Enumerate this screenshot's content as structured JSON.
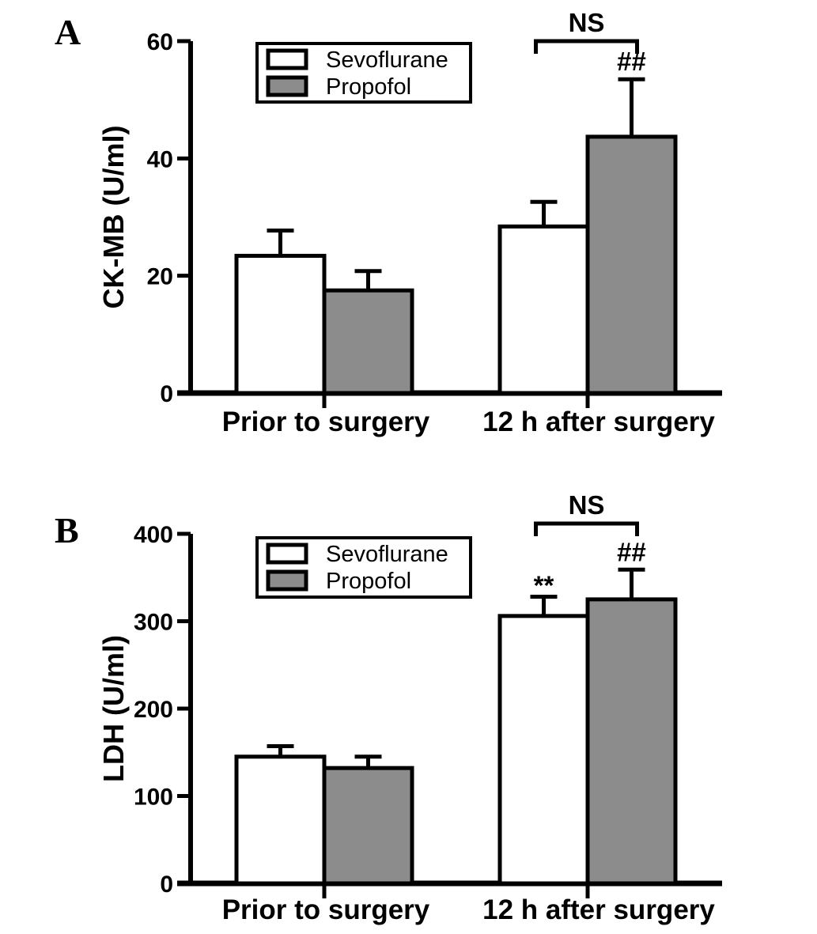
{
  "figure_background": "#ffffff",
  "stroke_color": "#000000",
  "chart_data": [
    {
      "panel": "A",
      "type": "bar",
      "title": "",
      "xlabel": "",
      "ylabel": "CK-MB (U/ml)",
      "ylim": [
        0,
        60
      ],
      "yticks": [
        0,
        20,
        40,
        60
      ],
      "categories": [
        "Prior to surgery",
        "12 h after surgery"
      ],
      "series": [
        {
          "name": "Sevoflurane",
          "fill": "#ffffff",
          "values": [
            23.4,
            28.4
          ],
          "errors": [
            4.3,
            4.2
          ]
        },
        {
          "name": "Propofol",
          "fill": "#8c8c8c",
          "values": [
            17.5,
            43.7
          ],
          "errors": [
            3.3,
            9.8
          ]
        }
      ],
      "legend": {
        "position": "top-left-inside",
        "entries": [
          "Sevoflurane",
          "Propofol"
        ]
      },
      "annotations": [
        {
          "type": "bracket",
          "text": "NS",
          "category_index": 1
        },
        {
          "type": "marker",
          "text": "##",
          "series_index": 1,
          "category_index": 1
        }
      ],
      "grid": false,
      "error_bars": "upper-only"
    },
    {
      "panel": "B",
      "type": "bar",
      "title": "",
      "xlabel": "",
      "ylabel": "LDH (U/ml)",
      "ylim": [
        0,
        400
      ],
      "yticks": [
        0,
        100,
        200,
        300,
        400
      ],
      "categories": [
        "Prior to surgery",
        "12 h after surgery"
      ],
      "series": [
        {
          "name": "Sevoflurane",
          "fill": "#ffffff",
          "values": [
            145,
            306
          ],
          "errors": [
            12,
            22
          ]
        },
        {
          "name": "Propofol",
          "fill": "#8c8c8c",
          "values": [
            132,
            325
          ],
          "errors": [
            13,
            34
          ]
        }
      ],
      "legend": {
        "position": "top-left-inside",
        "entries": [
          "Sevoflurane",
          "Propofol"
        ]
      },
      "annotations": [
        {
          "type": "bracket",
          "text": "NS",
          "category_index": 1
        },
        {
          "type": "marker",
          "text": "**",
          "series_index": 0,
          "category_index": 1
        },
        {
          "type": "marker",
          "text": "##",
          "series_index": 1,
          "category_index": 1
        }
      ],
      "grid": false,
      "error_bars": "upper-only"
    }
  ]
}
